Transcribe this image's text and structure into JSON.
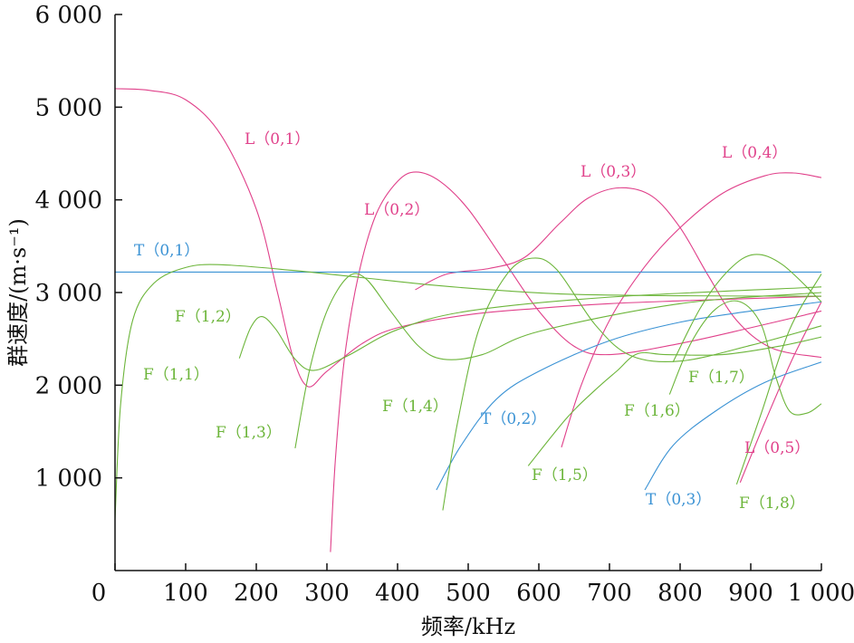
{
  "chart_data": {
    "type": "line",
    "title": "",
    "xlabel": "频率/kHz",
    "ylabel": "群速度/(m·s⁻¹)",
    "xlim": [
      0,
      1000
    ],
    "ylim": [
      0,
      6000
    ],
    "xticks": [
      0,
      100,
      200,
      300,
      400,
      500,
      600,
      700,
      800,
      900,
      1000
    ],
    "xtick_labels": [
      "0",
      "100",
      "200",
      "300",
      "400",
      "500",
      "600",
      "700",
      "800",
      "900",
      "1 000"
    ],
    "yticks": [
      1000,
      2000,
      3000,
      4000,
      5000,
      6000
    ],
    "ytick_labels": [
      "1 000",
      "2 000",
      "3 000",
      "4 000",
      "5 000",
      "6 000"
    ],
    "grid": false,
    "colors": {
      "L": "#e0408a",
      "F": "#6cb53a",
      "T": "#3a92d4"
    },
    "series": [
      {
        "name": "L（0,1）",
        "family": "L",
        "points": [
          [
            0,
            5200
          ],
          [
            50,
            5180
          ],
          [
            100,
            5080
          ],
          [
            150,
            4700
          ],
          [
            200,
            3900
          ],
          [
            230,
            3000
          ],
          [
            252,
            2300
          ],
          [
            273,
            1985
          ],
          [
            300,
            2150
          ],
          [
            350,
            2450
          ],
          [
            400,
            2620
          ],
          [
            500,
            2760
          ],
          [
            600,
            2830
          ],
          [
            700,
            2880
          ],
          [
            800,
            2910
          ],
          [
            1000,
            2960
          ]
        ]
      },
      {
        "name": "L（0,2）",
        "family": "L",
        "points": [
          [
            305,
            200
          ],
          [
            312,
            1200
          ],
          [
            325,
            2300
          ],
          [
            345,
            3200
          ],
          [
            370,
            3850
          ],
          [
            400,
            4200
          ],
          [
            426,
            4300
          ],
          [
            460,
            4200
          ],
          [
            500,
            3900
          ],
          [
            550,
            3350
          ],
          [
            600,
            2800
          ],
          [
            650,
            2420
          ],
          [
            700,
            2330
          ],
          [
            800,
            2450
          ],
          [
            900,
            2620
          ],
          [
            1000,
            2800
          ]
        ]
      },
      {
        "name": "L（0,3）",
        "family": "L",
        "points": [
          [
            425,
            3030
          ],
          [
            470,
            3200
          ],
          [
            530,
            3260
          ],
          [
            580,
            3380
          ],
          [
            630,
            3750
          ],
          [
            670,
            4020
          ],
          [
            715,
            4130
          ],
          [
            760,
            4040
          ],
          [
            800,
            3700
          ],
          [
            840,
            3180
          ],
          [
            880,
            2700
          ],
          [
            930,
            2400
          ],
          [
            1000,
            2300
          ]
        ]
      },
      {
        "name": "L（0,4）",
        "family": "L",
        "points": [
          [
            632,
            1330
          ],
          [
            660,
            2000
          ],
          [
            700,
            2700
          ],
          [
            750,
            3280
          ],
          [
            800,
            3700
          ],
          [
            860,
            4070
          ],
          [
            920,
            4260
          ],
          [
            960,
            4290
          ],
          [
            1000,
            4240
          ]
        ]
      },
      {
        "name": "L（0,5）",
        "family": "L",
        "points": [
          [
            885,
            950
          ],
          [
            920,
            1600
          ],
          [
            960,
            2300
          ],
          [
            1000,
            2900
          ]
        ]
      },
      {
        "name": "T（0,1）",
        "family": "T",
        "points": [
          [
            0,
            3220
          ],
          [
            1000,
            3220
          ]
        ]
      },
      {
        "name": "T（0,2）",
        "family": "T",
        "points": [
          [
            455,
            870
          ],
          [
            490,
            1350
          ],
          [
            540,
            1850
          ],
          [
            600,
            2150
          ],
          [
            700,
            2480
          ],
          [
            800,
            2680
          ],
          [
            900,
            2800
          ],
          [
            1000,
            2900
          ]
        ]
      },
      {
        "name": "T（0,3）",
        "family": "T",
        "points": [
          [
            750,
            870
          ],
          [
            790,
            1350
          ],
          [
            850,
            1720
          ],
          [
            920,
            2030
          ],
          [
            1000,
            2250
          ]
        ]
      },
      {
        "name": "F（1,1）",
        "family": "F",
        "points": [
          [
            0,
            550
          ],
          [
            8,
            1800
          ],
          [
            25,
            2700
          ],
          [
            55,
            3100
          ],
          [
            100,
            3270
          ],
          [
            150,
            3300
          ],
          [
            250,
            3240
          ],
          [
            350,
            3160
          ],
          [
            450,
            3080
          ],
          [
            550,
            3020
          ],
          [
            650,
            2980
          ],
          [
            800,
            2965
          ],
          [
            1000,
            2960
          ]
        ]
      },
      {
        "name": "F（1,2）",
        "family": "F",
        "points": [
          [
            176,
            2290
          ],
          [
            192,
            2620
          ],
          [
            208,
            2740
          ],
          [
            228,
            2600
          ],
          [
            255,
            2280
          ],
          [
            282,
            2160
          ],
          [
            330,
            2320
          ],
          [
            400,
            2600
          ],
          [
            500,
            2800
          ],
          [
            700,
            2950
          ],
          [
            1000,
            3060
          ]
        ]
      },
      {
        "name": "F（1,3）",
        "family": "F",
        "points": [
          [
            255,
            1320
          ],
          [
            275,
            2150
          ],
          [
            300,
            2800
          ],
          [
            330,
            3170
          ],
          [
            355,
            3150
          ],
          [
            390,
            2800
          ],
          [
            430,
            2420
          ],
          [
            465,
            2280
          ],
          [
            520,
            2330
          ],
          [
            600,
            2580
          ],
          [
            800,
            2880
          ],
          [
            1000,
            3000
          ]
        ]
      },
      {
        "name": "F（1,4）",
        "family": "F",
        "points": [
          [
            464,
            650
          ],
          [
            485,
            1600
          ],
          [
            515,
            2600
          ],
          [
            555,
            3200
          ],
          [
            590,
            3370
          ],
          [
            625,
            3250
          ],
          [
            680,
            2650
          ],
          [
            730,
            2320
          ],
          [
            800,
            2260
          ],
          [
            900,
            2430
          ],
          [
            1000,
            2640
          ]
        ]
      },
      {
        "name": "F（1,5）",
        "family": "F",
        "points": [
          [
            585,
            1130
          ],
          [
            640,
            1650
          ],
          [
            680,
            1950
          ],
          [
            710,
            2150
          ],
          [
            740,
            2340
          ],
          [
            780,
            2330
          ],
          [
            860,
            2330
          ],
          [
            940,
            2420
          ],
          [
            1000,
            2520
          ]
        ]
      },
      {
        "name": "F（1,6）",
        "family": "F",
        "points": [
          [
            785,
            1900
          ],
          [
            815,
            2450
          ],
          [
            850,
            2820
          ],
          [
            885,
            2900
          ],
          [
            915,
            2650
          ],
          [
            935,
            2100
          ],
          [
            955,
            1720
          ],
          [
            980,
            1700
          ],
          [
            1000,
            1800
          ]
        ]
      },
      {
        "name": "F（1,7）",
        "family": "F",
        "points": [
          [
            790,
            2250
          ],
          [
            830,
            2850
          ],
          [
            870,
            3250
          ],
          [
            905,
            3410
          ],
          [
            945,
            3300
          ],
          [
            1000,
            2900
          ]
        ]
      },
      {
        "name": "F（1,8）",
        "family": "F",
        "points": [
          [
            880,
            930
          ],
          [
            915,
            1700
          ],
          [
            955,
            2600
          ],
          [
            1000,
            3200
          ]
        ]
      }
    ]
  }
}
